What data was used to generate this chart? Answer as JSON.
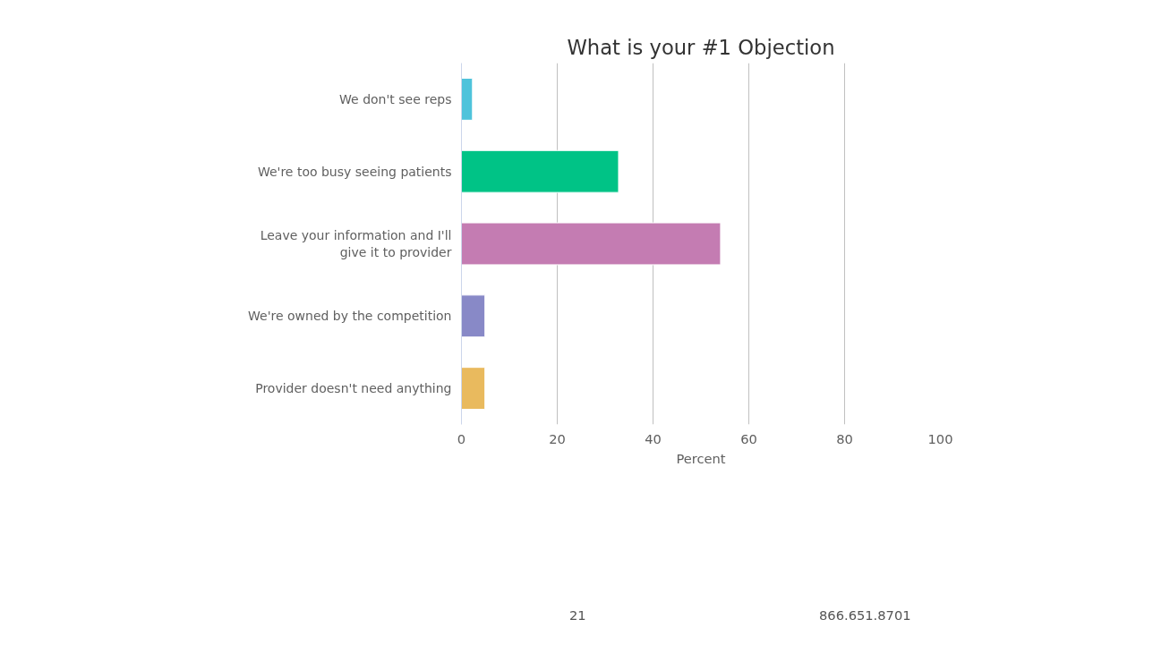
{
  "chart_data": {
    "type": "bar",
    "orientation": "horizontal",
    "title": "What is your #1 Objection",
    "xlabel": "Percent",
    "categories": [
      "We don't see reps",
      "We're too busy seeing patients",
      "Leave your information and I'll give it to provider",
      "We're owned by the competition",
      "Provider doesn't need anything"
    ],
    "values": [
      2.3,
      32.8,
      54.1,
      4.9,
      4.9
    ],
    "colors": [
      "#4fc3db",
      "#00c386",
      "#c47cb2",
      "#8889c7",
      "#e9ba5e"
    ],
    "xlim": [
      0,
      100
    ],
    "xticks": [
      0,
      20,
      40,
      60,
      80,
      100
    ],
    "grid": "x",
    "legend": false,
    "annotations": [
      "21",
      "866.651.8701"
    ]
  }
}
